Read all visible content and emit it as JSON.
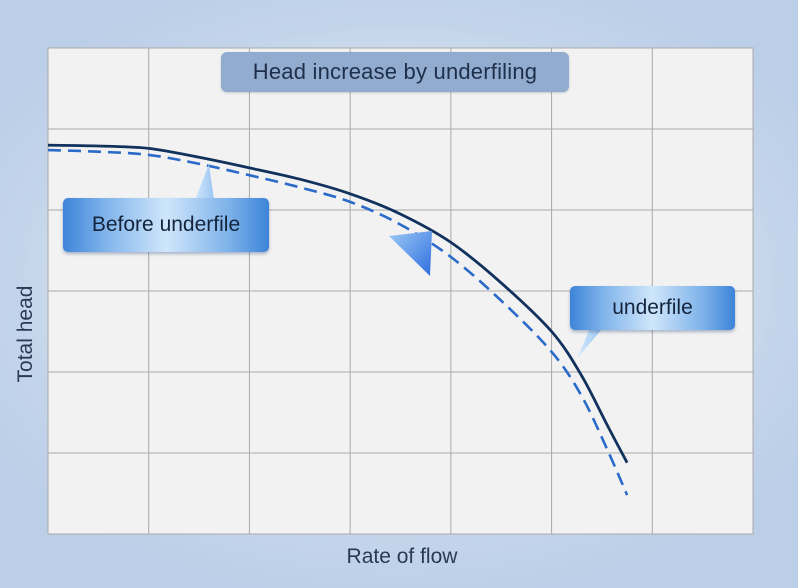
{
  "chart_data": {
    "type": "line",
    "title": "Head increase by underfiling",
    "xlabel": "Rate of flow",
    "ylabel": "Total head",
    "xlim": [
      0,
      7
    ],
    "ylim": [
      0,
      6
    ],
    "grid": true,
    "x_ticks_shown": false,
    "y_ticks_shown": false,
    "series": [
      {
        "name": "underfile",
        "style": "solid",
        "color": "#12325e",
        "x": [
          0,
          0.5,
          1,
          1.5,
          2,
          2.5,
          3,
          3.5,
          4,
          4.5,
          5,
          5.3,
          5.55,
          5.75
        ],
        "y": [
          4.8,
          4.79,
          4.76,
          4.65,
          4.52,
          4.38,
          4.2,
          3.95,
          3.6,
          3.1,
          2.5,
          1.95,
          1.35,
          0.88
        ]
      },
      {
        "name": "Before  underfile",
        "style": "dashed",
        "color": "#2a6ac8",
        "x": [
          0,
          0.5,
          1,
          1.5,
          2,
          2.5,
          3,
          3.5,
          4,
          4.5,
          5,
          5.3,
          5.55,
          5.75
        ],
        "y": [
          4.74,
          4.72,
          4.68,
          4.57,
          4.43,
          4.28,
          4.1,
          3.82,
          3.42,
          2.88,
          2.25,
          1.7,
          1.05,
          0.48
        ]
      }
    ],
    "annotations": [
      {
        "text": "Before  underfile",
        "points_to": "dashed curve"
      },
      {
        "text": "underfile",
        "points_to": "solid curve"
      }
    ],
    "colors": {
      "plot_background": "#f2f2f2",
      "grid": "#a9a9a9",
      "title_box": "#92acd0",
      "arrow": "#3e86e6"
    }
  }
}
